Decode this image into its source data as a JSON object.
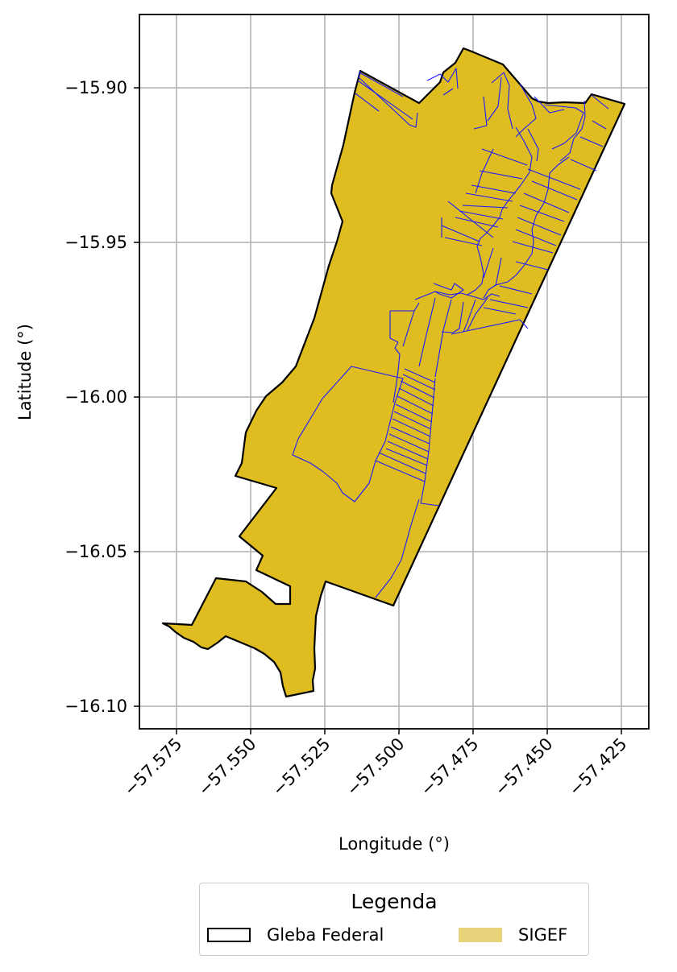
{
  "map": {
    "xlabel": "Longitude (°)",
    "ylabel": "Latitude (°)",
    "x_ticks": [
      "−57.575",
      "−57.550",
      "−57.525",
      "−57.500",
      "−57.475",
      "−57.450",
      "−57.425"
    ],
    "y_ticks": [
      "−15.90",
      "−15.95",
      "−16.00",
      "−16.05",
      "−16.10"
    ],
    "xlim": [
      -57.588,
      -57.417
    ],
    "ylim": [
      -16.107,
      -15.876
    ],
    "grid": true
  },
  "colors": {
    "fill": "#dfbc20",
    "outline": "#000000",
    "parcels": "#1a1aff",
    "grid": "#b0b0b0",
    "legend_swatch": "#e8d27a"
  },
  "legend": {
    "title": "Legenda",
    "items": [
      {
        "label": "Gleba Federal",
        "kind": "outline"
      },
      {
        "label": "SIGEF",
        "kind": "fill"
      }
    ],
    "placement": "below"
  }
}
